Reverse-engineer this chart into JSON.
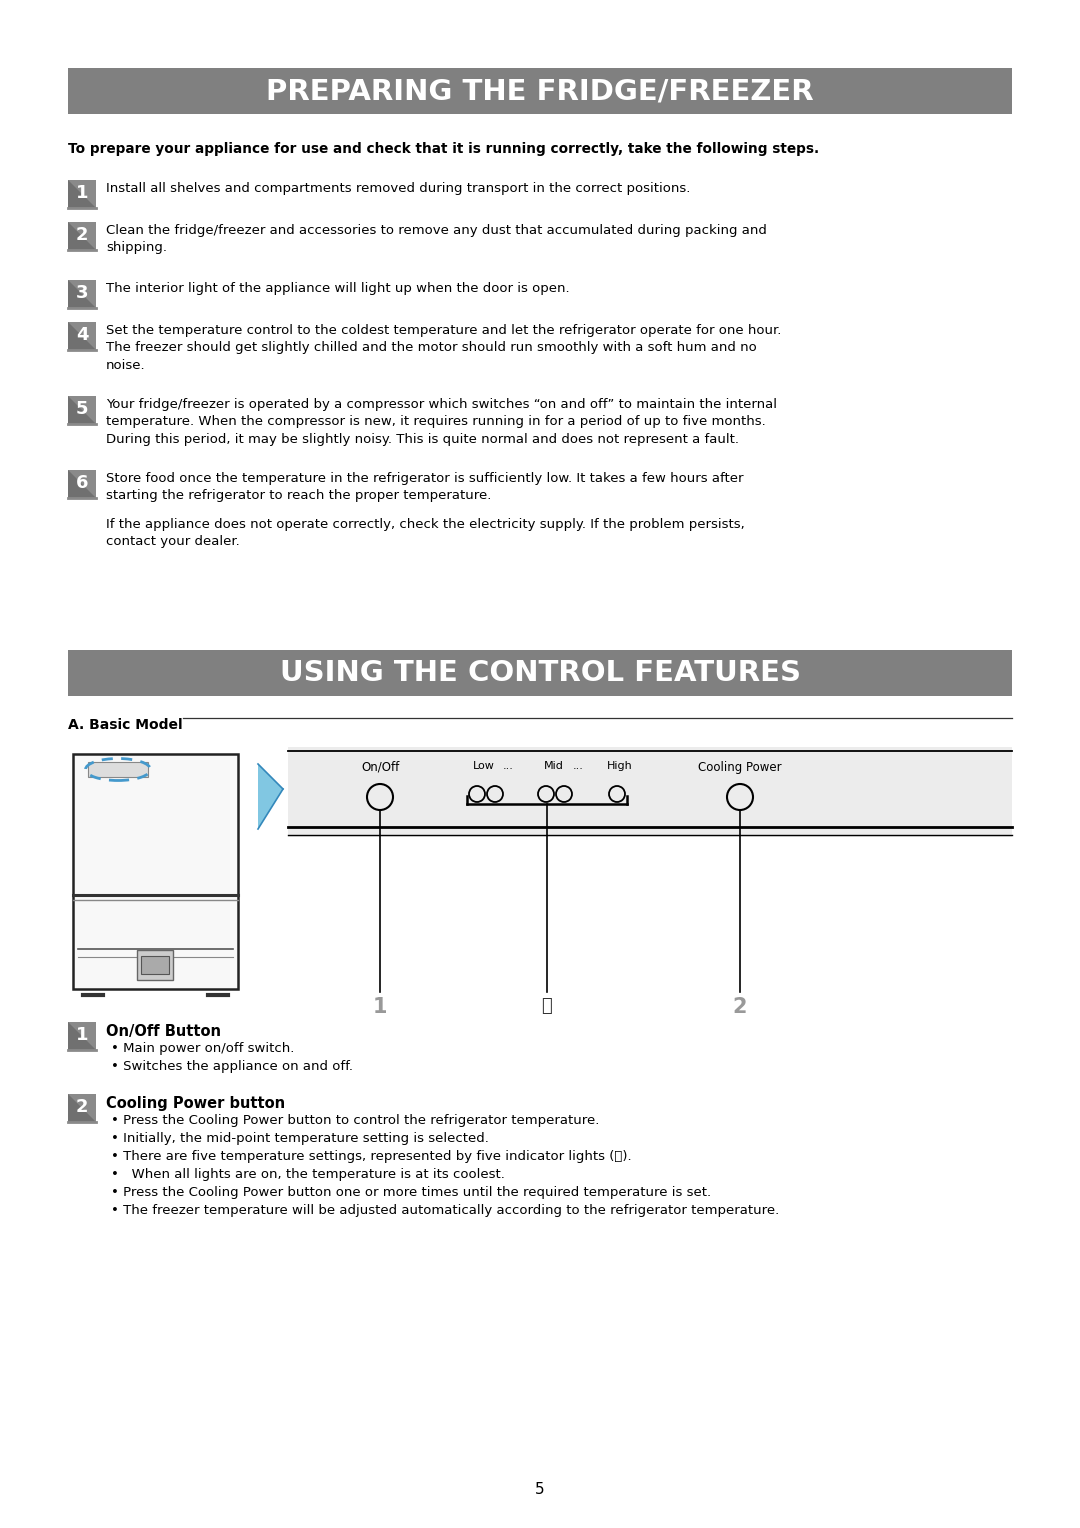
{
  "page_bg": "#ffffff",
  "title1": "PREPARING THE FRIDGE/FREEZER",
  "title1_bg": "#808080",
  "title1_fg": "#ffffff",
  "title2": "USING THE CONTROL FEATURES",
  "title2_bg": "#808080",
  "title2_fg": "#ffffff",
  "bold_intro": "To prepare your appliance for use and check that it is running correctly, take the following steps.",
  "steps": [
    "Install all shelves and compartments removed during transport in the correct positions.",
    "Clean the fridge/freezer and accessories to remove any dust that accumulated during packing and\nshipping.",
    "The interior light of the appliance will light up when the door is open.",
    "Set the temperature control to the coldest temperature and let the refrigerator operate for one hour.\nThe freezer should get slightly chilled and the motor should run smoothly with a soft hum and no\nnoise.",
    "Your fridge/freezer is operated by a compressor which switches “on and off” to maintain the internal\ntemperature. When the compressor is new, it requires running in for a period of up to five months.\nDuring this period, it may be slightly noisy. This is quite normal and does not represent a fault.",
    "Store food once the temperature in the refrigerator is sufficiently low. It takes a few hours after\nstarting the refrigerator to reach the proper temperature."
  ],
  "extra_text": "If the appliance does not operate correctly, check the electricity supply. If the problem persists,\ncontact your dealer.",
  "section_a_label": "A. Basic Model",
  "onoff_label": "On/Off",
  "low_label": "Low",
  "mid_label": "Mid",
  "high_label": "High",
  "cooling_label": "Cooling Power",
  "dots": "...",
  "num1_label": "On/Off Button",
  "num1_bullets": [
    "Main power on/off switch.",
    "Switches the appliance on and off."
  ],
  "num2_label": "Cooling Power button",
  "num2_bullets": [
    "Press the Cooling Power button to control the refrigerator temperature.",
    "Initially, the mid-point temperature setting is selected.",
    "There are five temperature settings, represented by five indicator lights (ⓘ).",
    "  When all lights are on, the temperature is at its coolest.",
    "Press the Cooling Power button one or more times until the required temperature is set.",
    "The freezer temperature will be adjusted automatically according to the refrigerator temperature."
  ],
  "page_number": "5"
}
